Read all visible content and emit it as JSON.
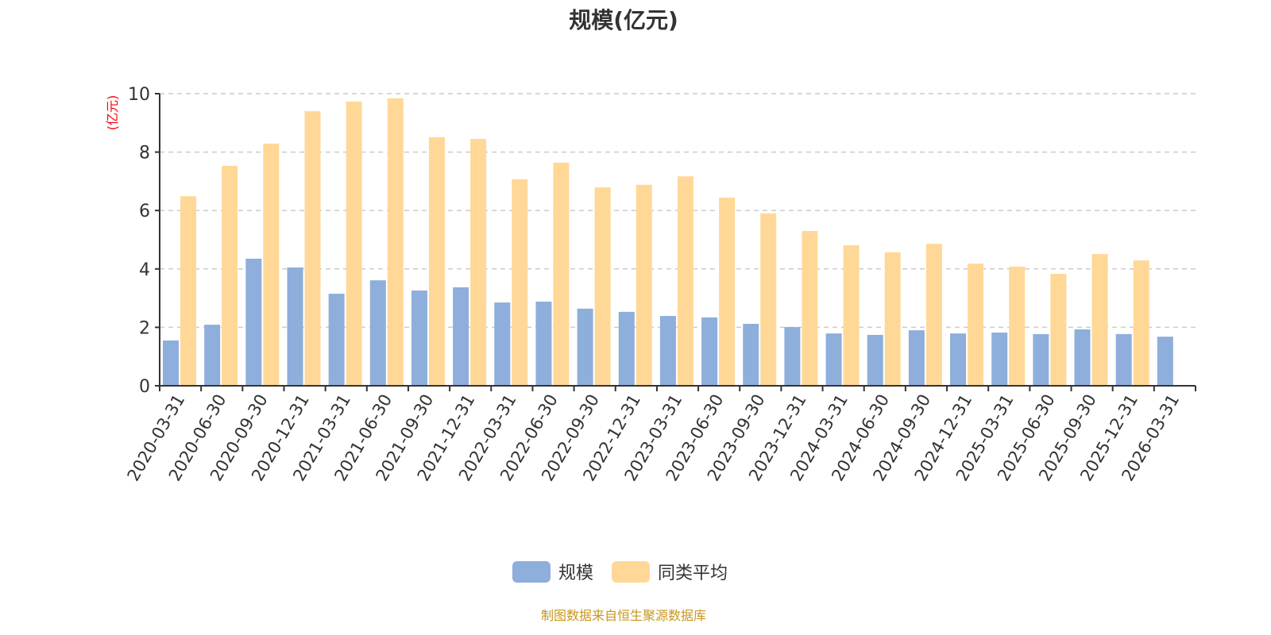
{
  "chart_data": {
    "type": "bar",
    "title": "规模(亿元)",
    "ylabel": "(亿元)",
    "xlabel": "",
    "ylim": [
      0,
      10
    ],
    "yticks": [
      "0",
      "2",
      "4",
      "6",
      "8",
      "10"
    ],
    "grid": true,
    "legend_position": "bottom",
    "categories": [
      "2020-03-31",
      "2020-06-30",
      "2020-09-30",
      "2020-12-31",
      "2021-03-31",
      "2021-06-30",
      "2021-09-30",
      "2021-12-31",
      "2022-03-31",
      "2022-06-30",
      "2022-09-30",
      "2022-12-31",
      "2023-03-31",
      "2023-06-30",
      "2023-09-30",
      "2023-12-31",
      "2024-03-31",
      "2024-06-30",
      "2024-09-30",
      "2024-12-31",
      "2025-03-31",
      "2025-06-30",
      "2025-09-30",
      "2025-12-31",
      "2026-03-31"
    ],
    "series": [
      {
        "name": "规模",
        "color": "#8eaedb",
        "values": [
          1.55,
          2.09,
          4.35,
          4.05,
          3.15,
          3.61,
          3.26,
          3.37,
          2.85,
          2.88,
          2.64,
          2.53,
          2.39,
          2.34,
          2.12,
          2.01,
          1.79,
          1.74,
          1.9,
          1.79,
          1.82,
          1.77,
          1.93,
          1.77,
          1.68
        ]
      },
      {
        "name": "同类平均",
        "color": "#ffd897",
        "values": [
          6.49,
          7.53,
          8.29,
          9.4,
          9.73,
          9.84,
          8.51,
          8.45,
          7.07,
          7.64,
          6.79,
          6.88,
          7.17,
          6.44,
          5.9,
          5.3,
          4.81,
          4.57,
          4.86,
          4.18,
          4.08,
          3.83,
          4.51,
          4.29,
          null
        ]
      }
    ]
  },
  "footer": "制图数据来自恒生聚源数据库"
}
